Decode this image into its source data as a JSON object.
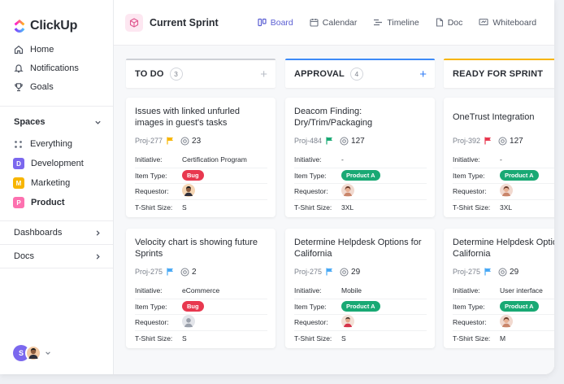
{
  "brand": {
    "name": "ClickUp"
  },
  "sidebar": {
    "nav": [
      {
        "label": "Home",
        "icon": "home-icon"
      },
      {
        "label": "Notifications",
        "icon": "bell-icon"
      },
      {
        "label": "Goals",
        "icon": "trophy-icon"
      }
    ],
    "spaces_label": "Spaces",
    "spaces": [
      {
        "label": "Everything",
        "badge": "",
        "color": ""
      },
      {
        "label": "Development",
        "badge": "D",
        "color": "#7b68ee"
      },
      {
        "label": "Marketing",
        "badge": "M",
        "color": "#f7b500"
      },
      {
        "label": "Product",
        "badge": "P",
        "color": "#fd71af",
        "active": true
      }
    ],
    "dashboards_label": "Dashboards",
    "docs_label": "Docs",
    "user_initial": "S"
  },
  "header": {
    "title": "Current Sprint",
    "tabs": [
      {
        "label": "Board",
        "icon": "board-icon",
        "active": true
      },
      {
        "label": "Calendar",
        "icon": "calendar-icon"
      },
      {
        "label": "Timeline",
        "icon": "timeline-icon"
      },
      {
        "label": "Doc",
        "icon": "doc-icon"
      },
      {
        "label": "Whiteboard",
        "icon": "whiteboard-icon"
      }
    ]
  },
  "field_labels": {
    "initiative": "Initiative:",
    "item_type": "Item Type:",
    "requestor": "Requestor:",
    "tshirt": "T-Shirt Size:"
  },
  "colors": {
    "bug": "#e8384f",
    "product_a": "#19a974",
    "accent": "#5b5fd3",
    "approval_border": "#3d8af7",
    "ready_border": "#f7b500",
    "flag_yellow": "#f7b500",
    "flag_green": "#19a974",
    "flag_red": "#e8384f",
    "flag_blue": "#49a9f5"
  },
  "columns": [
    {
      "title": "TO DO",
      "count": "3",
      "cards": [
        {
          "title": "Issues with linked unfurled images in guest's tasks",
          "id": "Proj-277",
          "flag": "yellow",
          "points": "23",
          "initiative": "Certification Program",
          "type": "Bug",
          "size": "S",
          "requestor": "man-dark"
        },
        {
          "title": "Velocity chart is showing future Sprints",
          "id": "Proj-275",
          "flag": "blue",
          "points": "2",
          "initiative": "eCommerce",
          "type": "Bug",
          "size": "S",
          "requestor": "gray"
        }
      ]
    },
    {
      "title": "APPROVAL",
      "count": "4",
      "cards": [
        {
          "title": "Deacom Finding: Dry/Trim/Packaging",
          "id": "Proj-484",
          "flag": "green",
          "points": "127",
          "initiative": "-",
          "type": "Product A",
          "size": "3XL",
          "requestor": "woman"
        },
        {
          "title": "Determine Helpdesk Options for California",
          "id": "Proj-275",
          "flag": "blue",
          "points": "29",
          "initiative": "Mobile",
          "type": "Product A",
          "size": "S",
          "requestor": "man-red"
        }
      ]
    },
    {
      "title": "READY FOR SPRINT",
      "count": "",
      "cards": [
        {
          "title": "OneTrust Integration",
          "id": "Proj-392",
          "flag": "red",
          "points": "127",
          "initiative": "-",
          "type": "Product A",
          "size": "3XL",
          "requestor": "woman"
        },
        {
          "title": "Determine Helpdesk Options for California",
          "id": "Proj-275",
          "flag": "blue",
          "points": "29",
          "initiative": "User interface",
          "type": "Product A",
          "size": "M",
          "requestor": "woman"
        }
      ]
    }
  ]
}
